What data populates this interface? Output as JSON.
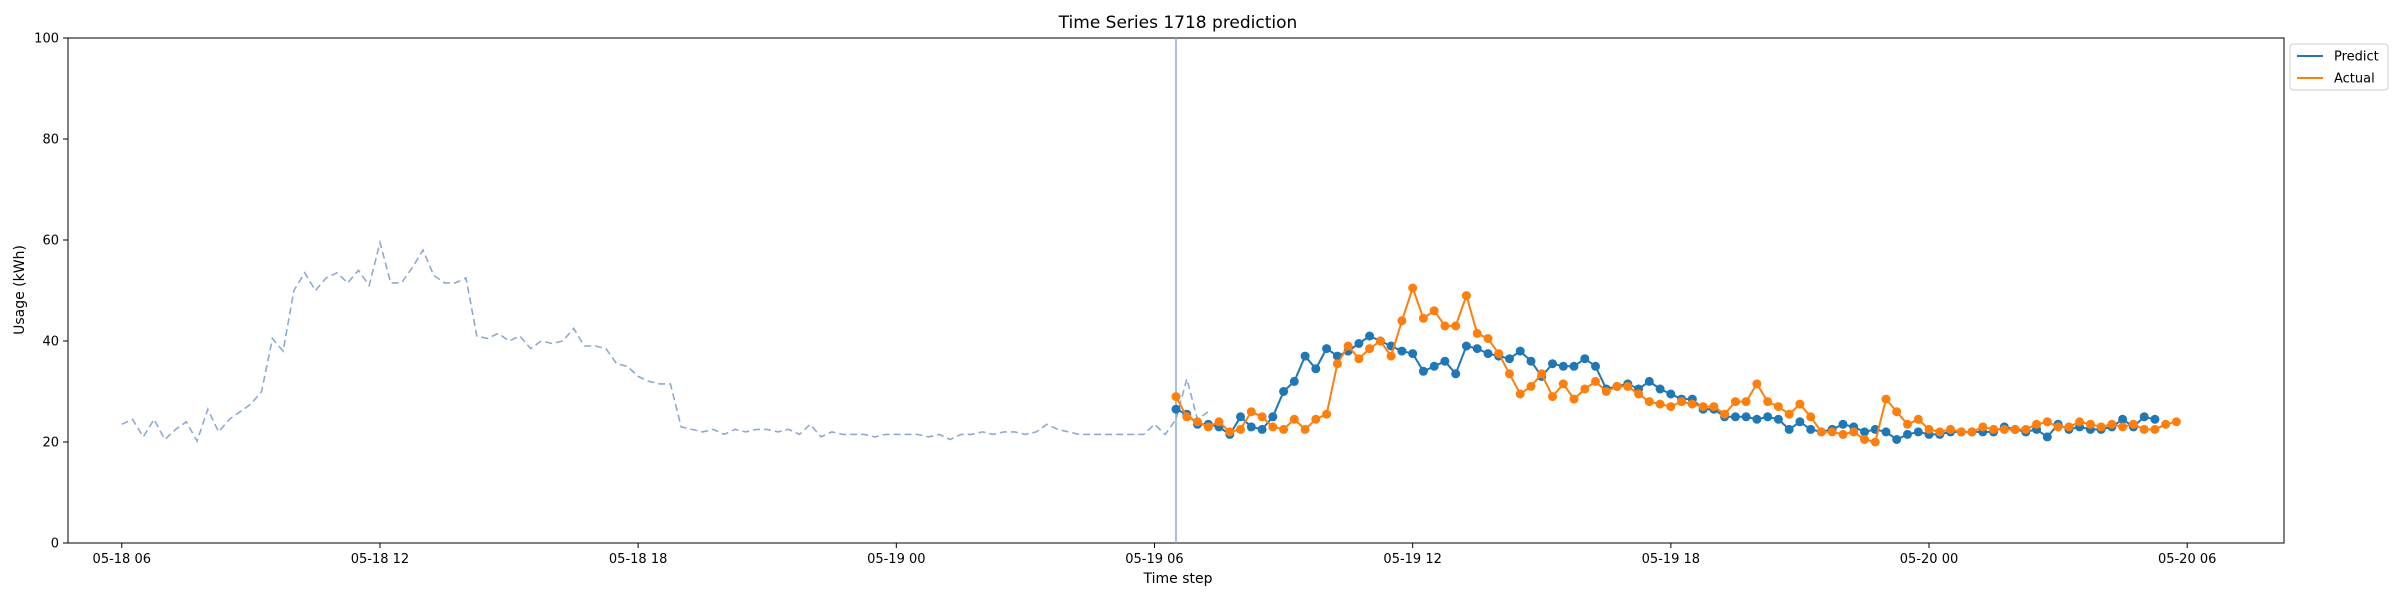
{
  "chart_data": {
    "type": "line",
    "title": "Time Series 1718 prediction",
    "xlabel": "Time step",
    "ylabel": "Usage (kWh)",
    "ylim": [
      0,
      100
    ],
    "yticks": [
      0,
      20,
      40,
      60,
      80,
      100
    ],
    "xlim": [
      "05-18 04:45",
      "05-20 08:15"
    ],
    "xtick_labels": [
      "05-18 06",
      "05-18 12",
      "05-18 18",
      "05-19 00",
      "05-19 06",
      "05-19 12",
      "05-19 18",
      "05-20 00",
      "05-20 06"
    ],
    "xtick_positions": [
      "05-18 06:00",
      "05-18 12:00",
      "05-18 18:00",
      "05-19 00:00",
      "05-19 06:00",
      "05-19 12:00",
      "05-19 18:00",
      "05-20 00:00",
      "05-20 06:00"
    ],
    "forecast_start": "05-19 06:30",
    "step_minutes": 15,
    "history": {
      "start": "05-18 06:00",
      "style": "dashed",
      "color": "#8fa9d0",
      "values": [
        23.5,
        24.5,
        21,
        24.5,
        20.5,
        22.5,
        24,
        20.2,
        26.5,
        22,
        24.5,
        26,
        27.5,
        30,
        40.5,
        38,
        50,
        53.5,
        50,
        52.5,
        53.5,
        51.5,
        54,
        51,
        59.5,
        51.5,
        51.5,
        54.5,
        58,
        53,
        51.5,
        51.5,
        52.5,
        41,
        40.5,
        41.5,
        40,
        41,
        38.5,
        40,
        39.5,
        40,
        42.5,
        39,
        39,
        38.5,
        35.5,
        35,
        33,
        32,
        31.5,
        31.5,
        23,
        22.5,
        22,
        22.5,
        21.5,
        22.5,
        22,
        22.5,
        22.5,
        22,
        22.5,
        21.5,
        23.5,
        21,
        22,
        21.5,
        21.5,
        21.5,
        21,
        21.5,
        21.5,
        21.5,
        21.5,
        21,
        21.5,
        20.5,
        21.5,
        21.5,
        22,
        21.5,
        22,
        22,
        21.5,
        22,
        23.5,
        22.5,
        22,
        21.5,
        21.5,
        21.5,
        21.5,
        21.5,
        21.5,
        21.5,
        23.5,
        21.5,
        24.5,
        32.5,
        24.5,
        26
      ]
    },
    "series": [
      {
        "name": "Predict",
        "color": "#1f77b4",
        "start": "05-19 06:30",
        "values": [
          26.5,
          25.5,
          23.5,
          23.5,
          23,
          21.5,
          25,
          23,
          22.5,
          25,
          30,
          32,
          37,
          34.5,
          38.5,
          37,
          38,
          39.5,
          41,
          40,
          39,
          38,
          37.5,
          34,
          35,
          36,
          33.5,
          39,
          38.5,
          37.5,
          37,
          36.5,
          38,
          36,
          33,
          35.5,
          35,
          35,
          36.5,
          35,
          30.5,
          31,
          31.5,
          30.5,
          32,
          30.5,
          29.5,
          28.5,
          28.5,
          26.5,
          26.5,
          25,
          25,
          25,
          24.5,
          25,
          24.5,
          22.5,
          24,
          22.5,
          22,
          22.5,
          23.5,
          23,
          22,
          22.5,
          22,
          20.5,
          21.5,
          22,
          21.5,
          21.5,
          22,
          22,
          22,
          22,
          22,
          23,
          22.5,
          22,
          22.5,
          21,
          23.5,
          22.5,
          23,
          22.5,
          22.5,
          23,
          24.5,
          23,
          25,
          24.5
        ]
      },
      {
        "name": "Actual",
        "color": "#ff7f0e",
        "start": "05-19 06:30",
        "values": [
          29,
          25,
          24,
          23,
          24,
          22,
          22.5,
          26,
          25,
          23,
          22.5,
          24.5,
          22.5,
          24.5,
          25.5,
          35.5,
          39,
          36.5,
          38.5,
          40,
          37,
          44,
          50.5,
          44.5,
          46,
          43,
          43,
          49,
          41.5,
          40.5,
          37.5,
          33.5,
          29.5,
          31,
          33.5,
          29,
          31.5,
          28.5,
          30.5,
          32,
          30,
          31,
          31,
          29.5,
          28,
          27.5,
          27,
          28,
          27.5,
          27,
          27,
          25.5,
          28,
          28,
          31.5,
          28,
          27,
          25.5,
          27.5,
          25,
          22,
          22,
          21.5,
          22,
          20.5,
          20,
          28.5,
          26,
          23.5,
          24.5,
          22.5,
          22,
          22.5,
          22,
          22,
          23,
          22.5,
          22.5,
          22.5,
          22.5,
          23.5,
          24,
          23,
          23,
          24,
          23.5,
          23,
          23.5,
          23,
          23.5,
          22.5,
          22.5,
          23.5,
          24
        ]
      }
    ],
    "legend": {
      "position": "top-right, outside plot",
      "entries": [
        "Predict",
        "Actual"
      ]
    },
    "grid": false
  }
}
